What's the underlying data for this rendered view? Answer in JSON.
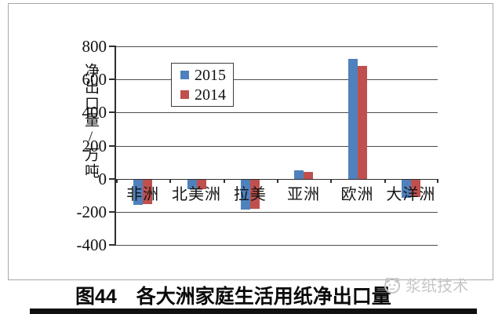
{
  "page": {
    "caption": "图44　各大洲家庭生活用纸净出口量",
    "watermark": "浆纸技术"
  },
  "chart_data": {
    "type": "bar",
    "title": "图44 各大洲家庭生活用纸净出口量",
    "ylabel": "净出口量/万吨",
    "xlabel": "",
    "categories": [
      "非洲",
      "北美洲",
      "拉美",
      "亚洲",
      "欧洲",
      "大洋洲"
    ],
    "series": [
      {
        "name": "2015",
        "color": "#4f81bd",
        "values": [
          -160,
          -65,
          -185,
          50,
          725,
          -115
        ]
      },
      {
        "name": "2014",
        "color": "#c0504d",
        "values": [
          -155,
          -65,
          -180,
          40,
          680,
          -110
        ]
      }
    ],
    "ylim": [
      -400,
      800
    ],
    "yticks": [
      800,
      600,
      400,
      200,
      0,
      -200,
      -400
    ],
    "unit": "万吨",
    "grid": true,
    "legend_position": "upper-left-inside"
  },
  "colors": {
    "bar_2015": "#4f81bd",
    "bar_2014": "#c0504d",
    "gridline": "#4d4d4d",
    "axis": "#2f2f2f",
    "watermark": "#c6c6c6",
    "bottom_bar": "#101010"
  }
}
